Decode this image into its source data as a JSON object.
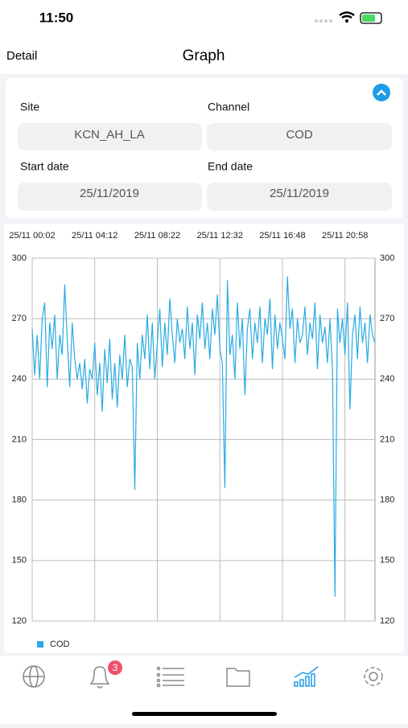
{
  "status_bar": {
    "time": "11:50"
  },
  "nav": {
    "back": "Detail",
    "title": "Graph"
  },
  "filters": {
    "site": {
      "label": "Site",
      "value": "KCN_AH_LA"
    },
    "channel": {
      "label": "Channel",
      "value": "COD"
    },
    "start_date": {
      "label": "Start date",
      "value": "25/11/2019"
    },
    "end_date": {
      "label": "End date",
      "value": "25/11/2019"
    }
  },
  "tab_bar": {
    "badge": "3"
  },
  "chart_data": {
    "type": "line",
    "xlim": [
      0,
      137
    ],
    "xticks": [
      {
        "value": 0,
        "label": "25/11 00:02"
      },
      {
        "value": 25,
        "label": "25/11 04:12"
      },
      {
        "value": 50,
        "label": "25/11 08:22"
      },
      {
        "value": 75,
        "label": "25/11 12:32"
      },
      {
        "value": 100,
        "label": "25/11 16:48"
      },
      {
        "value": 125,
        "label": "25/11 20:58"
      }
    ],
    "ylim": [
      120,
      300
    ],
    "yticks": [
      120,
      150,
      180,
      210,
      240,
      270,
      300
    ],
    "grid": true,
    "legend": "bottom-left",
    "series": [
      {
        "name": "COD",
        "color": "#29abe2",
        "values": [
          265,
          242,
          262,
          240,
          270,
          278,
          236,
          268,
          255,
          272,
          240,
          262,
          252,
          287,
          260,
          236,
          268,
          250,
          240,
          248,
          235,
          250,
          228,
          245,
          240,
          258,
          232,
          248,
          224,
          255,
          238,
          260,
          230,
          248,
          226,
          252,
          240,
          262,
          236,
          250,
          246,
          185,
          258,
          240,
          262,
          250,
          272,
          245,
          268,
          240,
          258,
          275,
          246,
          268,
          252,
          280,
          262,
          248,
          270,
          258,
          265,
          250,
          276,
          255,
          268,
          242,
          272,
          260,
          278,
          255,
          268,
          250,
          275,
          262,
          282,
          255,
          248,
          186,
          289,
          252,
          262,
          240,
          278,
          255,
          270,
          232,
          265,
          275,
          250,
          268,
          258,
          276,
          248,
          270,
          262,
          280,
          245,
          272,
          255,
          268,
          260,
          250,
          291,
          265,
          275,
          248,
          270,
          258,
          262,
          276,
          252,
          268,
          260,
          278,
          245,
          272,
          258,
          266,
          248,
          270,
          245,
          132,
          275,
          258,
          270,
          252,
          278,
          225,
          262,
          272,
          250,
          276,
          258,
          268,
          248,
          272,
          262,
          258
        ]
      }
    ]
  }
}
